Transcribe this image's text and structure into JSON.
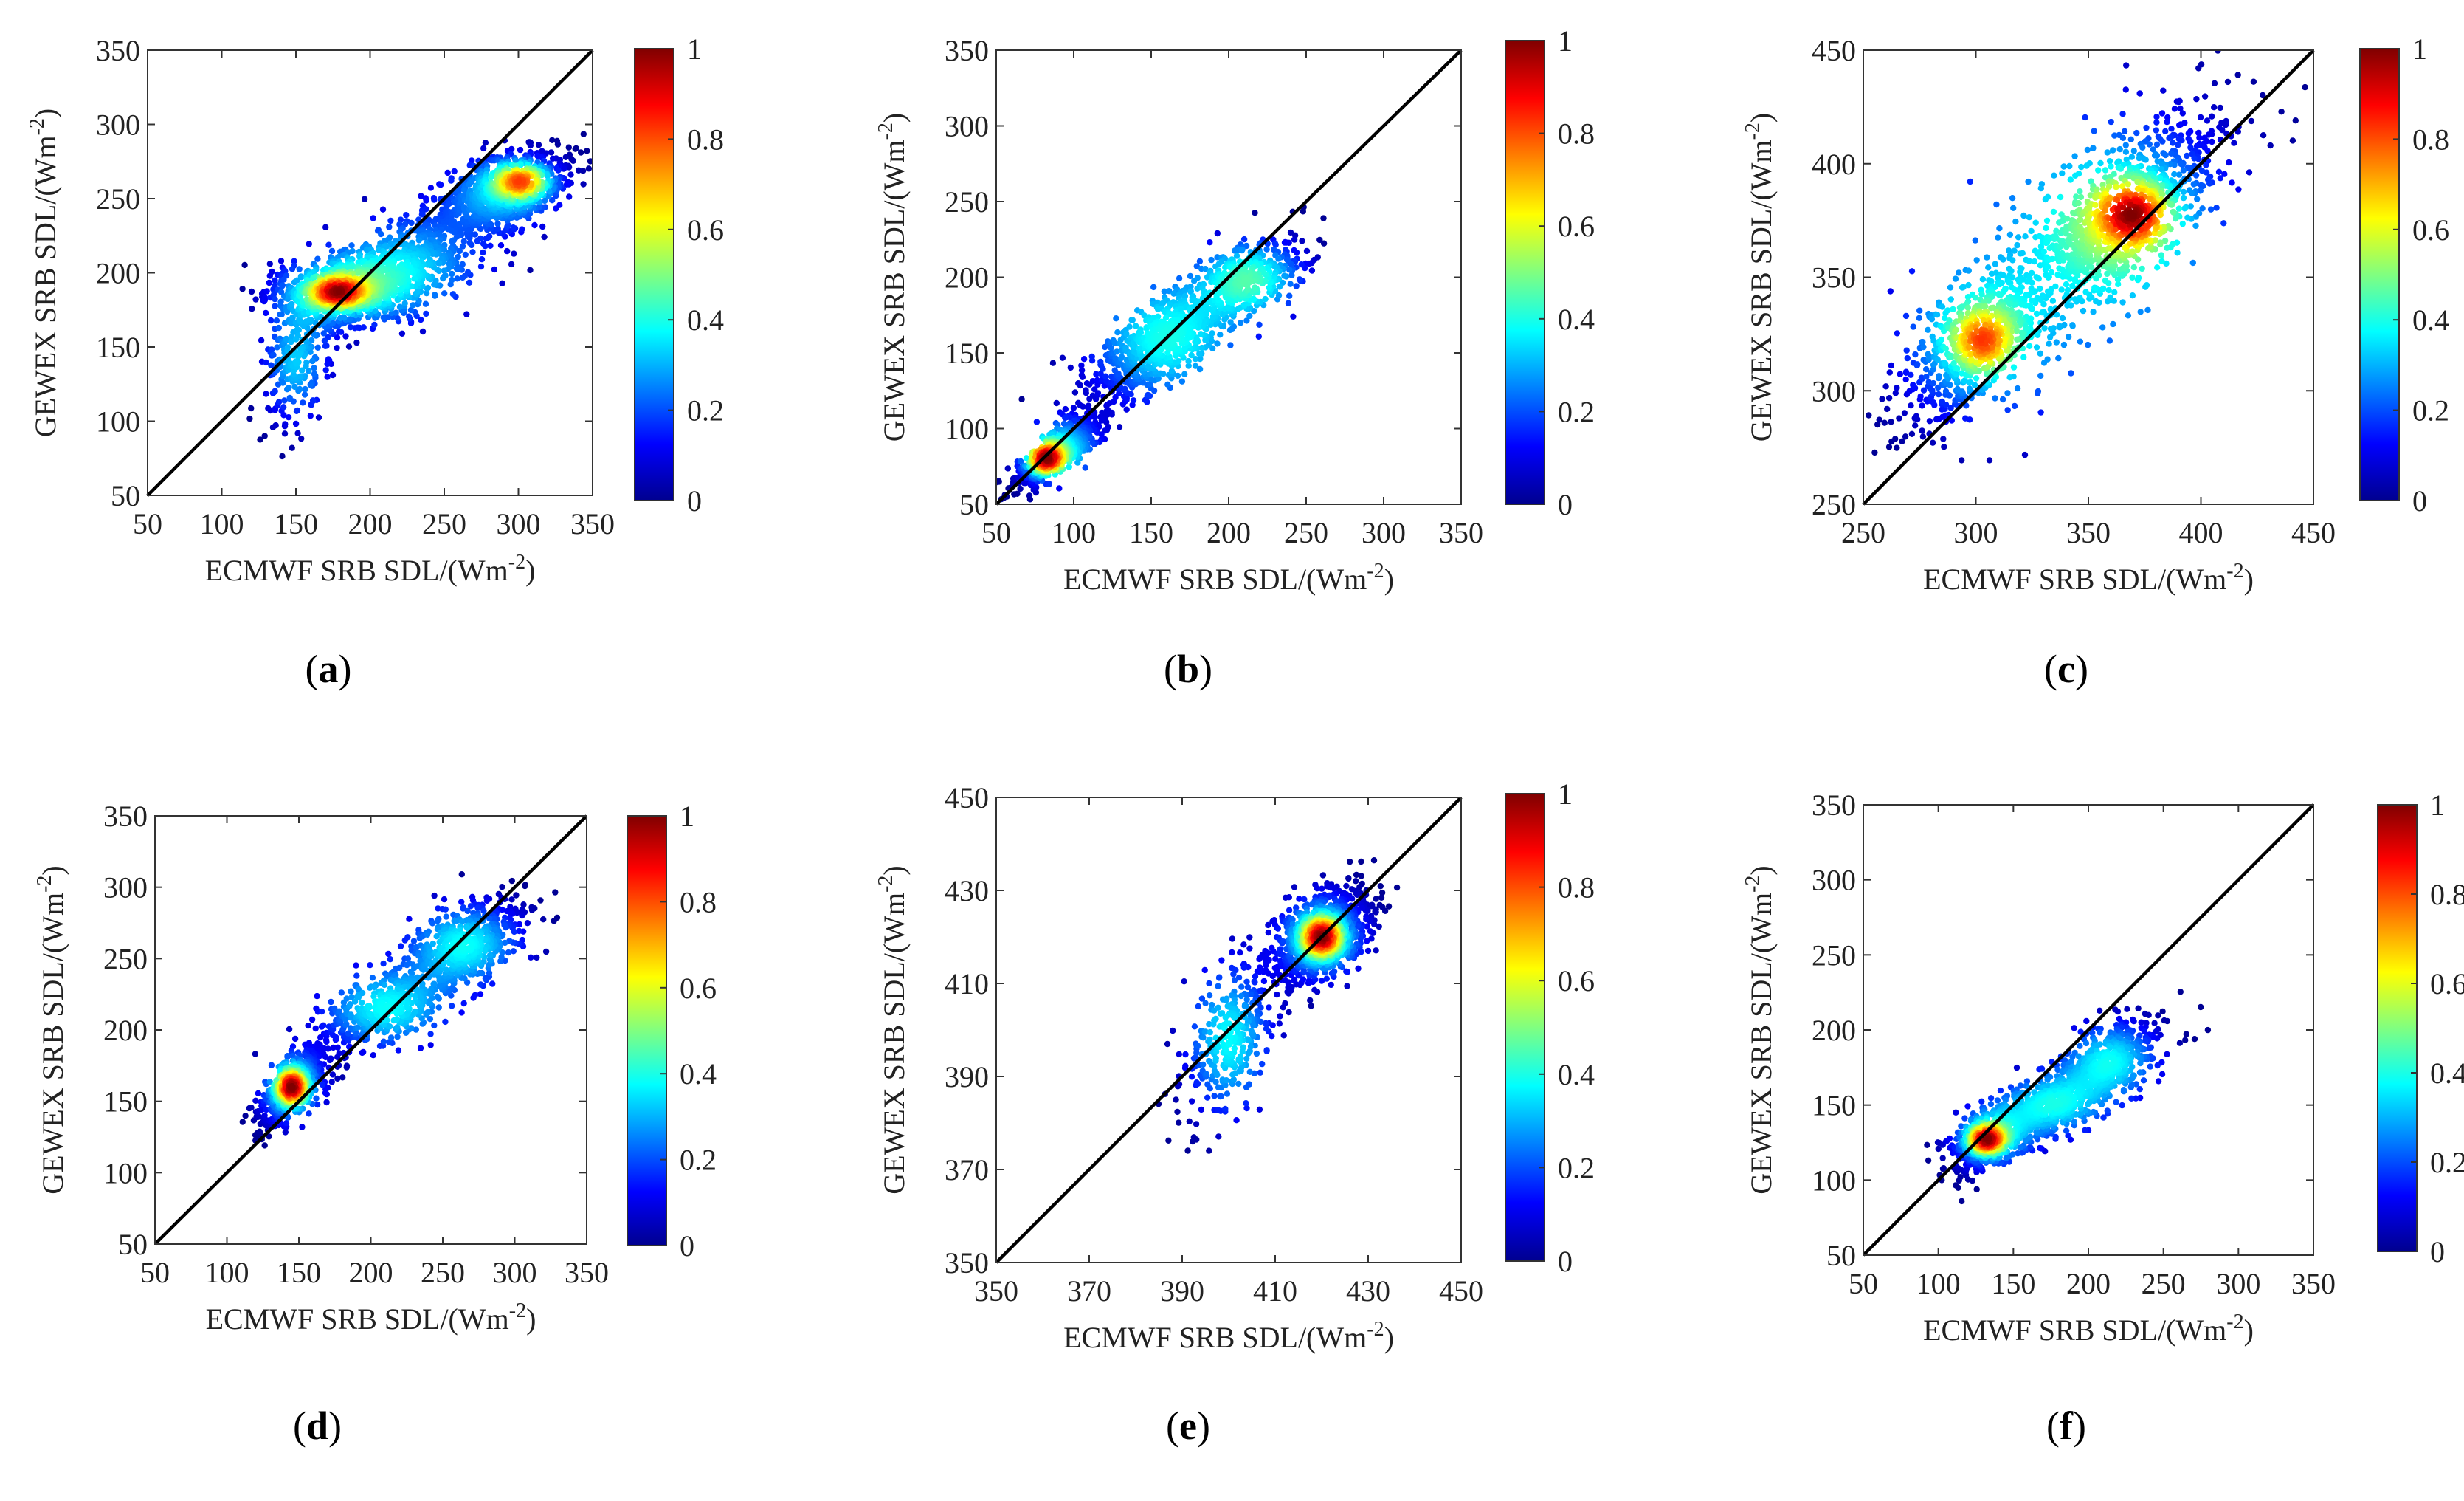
{
  "figure": {
    "colorbar": {
      "ticks": [
        "0",
        "0.2",
        "0.4",
        "0.6",
        "0.8",
        "1"
      ],
      "min": 0,
      "max": 1,
      "colormap": "jet",
      "stops": [
        "#00008f",
        "#0000ff",
        "#0080ff",
        "#00ffff",
        "#80ff80",
        "#ffff00",
        "#ff8000",
        "#ff0000",
        "#800000"
      ]
    },
    "diagonal_color": "#000000"
  },
  "chart_data": [
    {
      "type": "scatter",
      "panel": "a",
      "caption": "(a)",
      "caption_letter": "a",
      "xlabel": "ECMWF SRB SDL/(Wm",
      "ylabel": "GEWEX SRB SDL/(Wm",
      "label_unit_exponent": "-2",
      "xlim": [
        50,
        350
      ],
      "ylim": [
        50,
        350
      ],
      "xticks": [
        50,
        100,
        150,
        200,
        250,
        300,
        350
      ],
      "yticks": [
        50,
        100,
        150,
        200,
        250,
        300,
        350
      ],
      "one_to_one_line": true,
      "clusters": [
        {
          "x": 290,
          "y": 255,
          "sx": 22,
          "sy": 14,
          "rho": 0.5,
          "n": 900
        },
        {
          "x": 180,
          "y": 188,
          "sx": 22,
          "sy": 12,
          "rho": 0.2,
          "n": 850
        },
        {
          "x": 225,
          "y": 205,
          "sx": 30,
          "sy": 20,
          "rho": 0.6,
          "n": 650
        },
        {
          "x": 150,
          "y": 140,
          "sx": 12,
          "sy": 22,
          "rho": 0.3,
          "n": 220
        }
      ],
      "density_hotspots": [
        {
          "x": 302,
          "y": 262,
          "peak": 1.0
        },
        {
          "x": 178,
          "y": 187,
          "peak": 1.0
        }
      ]
    },
    {
      "type": "scatter",
      "panel": "b",
      "caption": "(b)",
      "caption_letter": "b",
      "xlabel": "ECMWF SRB SDL/(Wm",
      "ylabel": "GEWEX SRB SDL/(Wm",
      "label_unit_exponent": "-2",
      "xlim": [
        50,
        350
      ],
      "ylim": [
        50,
        350
      ],
      "xticks": [
        50,
        100,
        150,
        200,
        250,
        300,
        350
      ],
      "yticks": [
        50,
        100,
        150,
        200,
        250,
        300,
        350
      ],
      "one_to_one_line": true,
      "clusters": [
        {
          "x": 90,
          "y": 85,
          "sx": 14,
          "sy": 12,
          "rho": 0.8,
          "n": 700
        },
        {
          "x": 160,
          "y": 160,
          "sx": 28,
          "sy": 24,
          "rho": 0.8,
          "n": 900
        },
        {
          "x": 215,
          "y": 200,
          "sx": 18,
          "sy": 14,
          "rho": 0.5,
          "n": 300
        }
      ],
      "density_hotspots": [
        {
          "x": 82,
          "y": 80,
          "peak": 1.0
        }
      ]
    },
    {
      "type": "scatter",
      "panel": "c",
      "caption": "(c)",
      "caption_letter": "c",
      "xlabel": "ECMWF SRB SDL/(Wm",
      "ylabel": "GEWEX SRB SDL/(Wm",
      "label_unit_exponent": "-2",
      "xlim": [
        250,
        450
      ],
      "ylim": [
        250,
        450
      ],
      "xticks": [
        250,
        300,
        350,
        400,
        450
      ],
      "yticks": [
        250,
        300,
        350,
        400,
        450
      ],
      "one_to_one_line": true,
      "clusters": [
        {
          "x": 300,
          "y": 322,
          "sx": 16,
          "sy": 16,
          "rho": 0.6,
          "n": 600
        },
        {
          "x": 365,
          "y": 375,
          "sx": 18,
          "sy": 16,
          "rho": 0.6,
          "n": 750
        },
        {
          "x": 345,
          "y": 360,
          "sx": 40,
          "sy": 40,
          "rho": 0.85,
          "n": 700
        }
      ],
      "density_hotspots": [
        {
          "x": 370,
          "y": 378,
          "peak": 1.0
        },
        {
          "x": 303,
          "y": 322,
          "peak": 0.8
        }
      ]
    },
    {
      "type": "scatter",
      "panel": "d",
      "caption": "(d)",
      "caption_letter": "d",
      "xlabel": "ECMWF SRB SDL/(Wm",
      "ylabel": "GEWEX SRB SDL/(Wm",
      "label_unit_exponent": "-2",
      "xlim": [
        50,
        350
      ],
      "ylim": [
        50,
        350
      ],
      "xticks": [
        50,
        100,
        150,
        200,
        250,
        300,
        350
      ],
      "yticks": [
        50,
        100,
        150,
        200,
        250,
        300,
        350
      ],
      "one_to_one_line": true,
      "clusters": [
        {
          "x": 145,
          "y": 160,
          "sx": 12,
          "sy": 14,
          "rho": 0.6,
          "n": 650
        },
        {
          "x": 210,
          "y": 215,
          "sx": 25,
          "sy": 16,
          "rho": 0.6,
          "n": 500
        },
        {
          "x": 265,
          "y": 260,
          "sx": 22,
          "sy": 16,
          "rho": 0.5,
          "n": 600
        }
      ],
      "density_hotspots": [
        {
          "x": 145,
          "y": 160,
          "peak": 1.0
        }
      ]
    },
    {
      "type": "scatter",
      "panel": "e",
      "caption": "(e)",
      "caption_letter": "e",
      "xlabel": "ECMWF SRB SDL/(Wm",
      "ylabel": "GEWEX SRB SDL/(Wm",
      "label_unit_exponent": "-2",
      "xlim": [
        350,
        450
      ],
      "ylim": [
        350,
        450
      ],
      "xticks": [
        350,
        370,
        390,
        410,
        430,
        450
      ],
      "yticks": [
        350,
        370,
        390,
        410,
        430,
        450
      ],
      "one_to_one_line": true,
      "clusters": [
        {
          "x": 420,
          "y": 420,
          "sx": 5,
          "sy": 5,
          "rho": 0.4,
          "n": 1100
        },
        {
          "x": 400,
          "y": 398,
          "sx": 5,
          "sy": 9,
          "rho": 0.5,
          "n": 350
        }
      ],
      "density_hotspots": [
        {
          "x": 420,
          "y": 420,
          "peak": 1.0
        }
      ]
    },
    {
      "type": "scatter",
      "panel": "f",
      "caption": "(f)",
      "caption_letter": "f",
      "xlabel": "ECMWF SRB SDL/(Wm",
      "ylabel": "GEWEX SRB SDL/(Wm",
      "label_unit_exponent": "-2",
      "xlim": [
        50,
        350
      ],
      "ylim": [
        50,
        350
      ],
      "xticks": [
        50,
        100,
        150,
        200,
        250,
        300,
        350
      ],
      "yticks": [
        50,
        100,
        150,
        200,
        250,
        300,
        350
      ],
      "one_to_one_line": true,
      "clusters": [
        {
          "x": 135,
          "y": 128,
          "sx": 14,
          "sy": 11,
          "rho": 0.5,
          "n": 700
        },
        {
          "x": 175,
          "y": 150,
          "sx": 20,
          "sy": 12,
          "rho": 0.5,
          "n": 550
        },
        {
          "x": 215,
          "y": 180,
          "sx": 18,
          "sy": 14,
          "rho": 0.5,
          "n": 450
        }
      ],
      "density_hotspots": [
        {
          "x": 132,
          "y": 127,
          "peak": 1.0
        }
      ]
    }
  ]
}
